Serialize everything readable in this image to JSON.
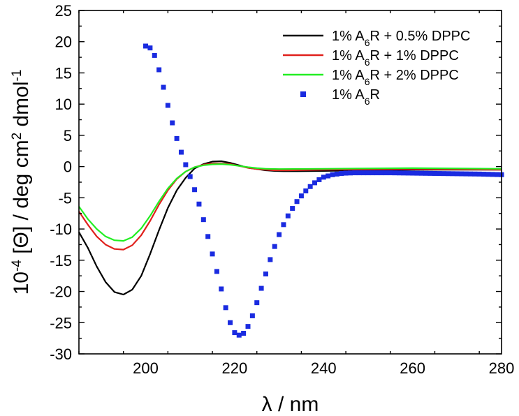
{
  "chart_data": {
    "type": "line",
    "xlabel_parts": [
      "λ / nm"
    ],
    "ylabel_parts": [
      "10",
      "-4",
      " [Θ] / deg cm",
      "2",
      " dmol",
      "-1"
    ],
    "xlim": [
      185,
      280
    ],
    "ylim": [
      -30,
      25
    ],
    "xticks": [
      200,
      220,
      240,
      260,
      280
    ],
    "yticks": [
      -30,
      -25,
      -20,
      -15,
      -10,
      -5,
      0,
      5,
      10,
      15,
      20,
      25
    ],
    "grid": false,
    "legend_position": "top-right",
    "series": [
      {
        "name": "1% A6R + 0.5% DPPC",
        "legend_parts": [
          "1% A",
          "6",
          "R + 0.5% DPPC"
        ],
        "style": "line",
        "color": "#000000",
        "points": [
          [
            185,
            -10.5
          ],
          [
            187,
            -13
          ],
          [
            189,
            -16
          ],
          [
            191,
            -18.5
          ],
          [
            193,
            -20.1
          ],
          [
            195,
            -20.5
          ],
          [
            197,
            -19.7
          ],
          [
            199,
            -17.5
          ],
          [
            201,
            -14
          ],
          [
            203,
            -10.2
          ],
          [
            205,
            -6.6
          ],
          [
            207,
            -3.8
          ],
          [
            209,
            -1.8
          ],
          [
            211,
            -0.3
          ],
          [
            213,
            0.4
          ],
          [
            215,
            0.8
          ],
          [
            217,
            0.85
          ],
          [
            219,
            0.6
          ],
          [
            221,
            0.2
          ],
          [
            223,
            -0.2
          ],
          [
            225,
            -0.4
          ],
          [
            227,
            -0.6
          ],
          [
            229,
            -0.7
          ],
          [
            231,
            -0.75
          ],
          [
            234,
            -0.75
          ],
          [
            240,
            -0.7
          ],
          [
            250,
            -0.6
          ],
          [
            260,
            -0.5
          ],
          [
            270,
            -0.5
          ],
          [
            280,
            -0.5
          ]
        ]
      },
      {
        "name": "1% A6R + 1% DPPC",
        "legend_parts": [
          "1% A",
          "6",
          "R + 1% DPPC"
        ],
        "style": "line",
        "color": "#e0201c",
        "points": [
          [
            185,
            -7.2
          ],
          [
            187,
            -9.3
          ],
          [
            189,
            -11.2
          ],
          [
            191,
            -12.5
          ],
          [
            193,
            -13.2
          ],
          [
            195,
            -13.3
          ],
          [
            197,
            -12.6
          ],
          [
            199,
            -11
          ],
          [
            201,
            -8.7
          ],
          [
            203,
            -6.1
          ],
          [
            205,
            -3.8
          ],
          [
            207,
            -2
          ],
          [
            209,
            -0.8
          ],
          [
            211,
            -0.1
          ],
          [
            213,
            0.3
          ],
          [
            215,
            0.5
          ],
          [
            217,
            0.5
          ],
          [
            219,
            0.4
          ],
          [
            221,
            0.1
          ],
          [
            223,
            -0.2
          ],
          [
            225,
            -0.4
          ],
          [
            227,
            -0.5
          ],
          [
            229,
            -0.6
          ],
          [
            232,
            -0.6
          ],
          [
            240,
            -0.5
          ],
          [
            250,
            -0.45
          ],
          [
            260,
            -0.4
          ],
          [
            270,
            -0.45
          ],
          [
            280,
            -0.5
          ]
        ]
      },
      {
        "name": "1% A6R + 2% DPPC",
        "legend_parts": [
          "1% A",
          "6",
          "R + 2% DPPC"
        ],
        "style": "line",
        "color": "#22ee22",
        "points": [
          [
            185,
            -6.4
          ],
          [
            187,
            -8.4
          ],
          [
            189,
            -10
          ],
          [
            191,
            -11.2
          ],
          [
            193,
            -11.8
          ],
          [
            195,
            -11.9
          ],
          [
            197,
            -11.3
          ],
          [
            199,
            -9.9
          ],
          [
            201,
            -7.9
          ],
          [
            203,
            -5.6
          ],
          [
            205,
            -3.5
          ],
          [
            207,
            -1.9
          ],
          [
            209,
            -0.8
          ],
          [
            211,
            -0.1
          ],
          [
            213,
            0.2
          ],
          [
            215,
            0.35
          ],
          [
            217,
            0.4
          ],
          [
            219,
            0.3
          ],
          [
            221,
            0.1
          ],
          [
            223,
            -0.1
          ],
          [
            225,
            -0.25
          ],
          [
            227,
            -0.35
          ],
          [
            230,
            -0.4
          ],
          [
            240,
            -0.35
          ],
          [
            250,
            -0.3
          ],
          [
            260,
            -0.25
          ],
          [
            270,
            -0.3
          ],
          [
            280,
            -0.35
          ]
        ]
      },
      {
        "name": "1% A6R",
        "legend_parts": [
          "1% A",
          "6",
          "R"
        ],
        "style": "markers",
        "color": "#1a2be0",
        "points": [
          [
            200,
            19.3
          ],
          [
            201,
            19
          ],
          [
            202,
            17.8
          ],
          [
            203,
            15.5
          ],
          [
            204,
            12.7
          ],
          [
            205,
            9.8
          ],
          [
            206,
            7
          ],
          [
            207,
            4.5
          ],
          [
            208,
            2.3
          ],
          [
            209,
            0.3
          ],
          [
            210,
            -1.6
          ],
          [
            211,
            -3.7
          ],
          [
            212,
            -6
          ],
          [
            213,
            -8.5
          ],
          [
            214,
            -11.2
          ],
          [
            215,
            -14
          ],
          [
            216,
            -16.8
          ],
          [
            217,
            -19.6
          ],
          [
            218,
            -22.6
          ],
          [
            219,
            -25
          ],
          [
            220,
            -26.6
          ],
          [
            221,
            -27
          ],
          [
            222,
            -26.7
          ],
          [
            223,
            -25.6
          ],
          [
            224,
            -23.9
          ],
          [
            225,
            -21.8
          ],
          [
            226,
            -19.5
          ],
          [
            227,
            -17.2
          ],
          [
            228,
            -14.9
          ],
          [
            229,
            -12.8
          ],
          [
            230,
            -10.9
          ],
          [
            231,
            -9.3
          ],
          [
            232,
            -7.9
          ],
          [
            233,
            -6.7
          ],
          [
            234,
            -5.6
          ],
          [
            235,
            -4.7
          ],
          [
            236,
            -3.9
          ],
          [
            237,
            -3.2
          ],
          [
            238,
            -2.6
          ],
          [
            239,
            -2.1
          ],
          [
            240,
            -1.7
          ],
          [
            241,
            -1.5
          ],
          [
            242,
            -1.3
          ],
          [
            243,
            -1.2
          ],
          [
            244,
            -1.1
          ],
          [
            245,
            -1.05
          ],
          [
            247,
            -1
          ],
          [
            250,
            -1
          ],
          [
            255,
            -1
          ],
          [
            260,
            -1.05
          ],
          [
            265,
            -1.1
          ],
          [
            270,
            -1.15
          ],
          [
            275,
            -1.2
          ],
          [
            280,
            -1.3
          ]
        ]
      }
    ]
  }
}
